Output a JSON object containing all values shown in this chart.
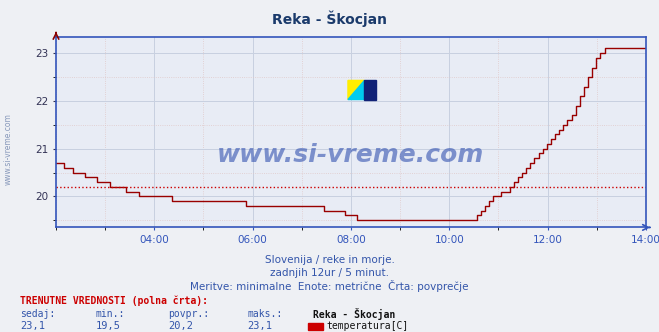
{
  "title": "Reka - Škocjan",
  "title_color": "#1a3a6b",
  "bg_color": "#eef0f4",
  "plot_bg_color": "#e8ecf5",
  "grid_color_major": "#c8d0e0",
  "grid_color_minor": "#e0c8c8",
  "line_color": "#990000",
  "avg_line_color": "#cc0000",
  "avg_line_value": 20.2,
  "xaxis_color": "#3355bb",
  "spine_color": "#3355bb",
  "xlim": [
    0,
    144
  ],
  "ylim": [
    19.35,
    23.35
  ],
  "yticks": [
    20,
    21,
    22,
    23
  ],
  "xtick_labels": [
    "04:00",
    "06:00",
    "08:00",
    "10:00",
    "12:00",
    "14:00"
  ],
  "xtick_positions": [
    24,
    48,
    72,
    96,
    120,
    144
  ],
  "watermark": "www.si-vreme.com",
  "watermark_color": "#2244aa",
  "sidebar_text": "www.si-vreme.com",
  "subtitle1": "Slovenija / reke in morje.",
  "subtitle2": "zadnjih 12ur / 5 minut.",
  "subtitle3": "Meritve: minimalne  Enote: metrične  Črta: povprečje",
  "footer_label1": "TRENUTNE VREDNOSTI (polna črta):",
  "footer_sedaj": "sedaj:",
  "footer_min": "min.:",
  "footer_povpr": "povpr.:",
  "footer_maks": "maks.:",
  "footer_name": "Reka - Škocjan",
  "footer_type": "temperatura[C]",
  "val_sedaj": "23,1",
  "val_min": "19,5",
  "val_povpr": "20,2",
  "val_maks": "23,1",
  "temperature_data": [
    20.7,
    20.7,
    20.6,
    20.6,
    20.5,
    20.5,
    20.5,
    20.4,
    20.4,
    20.4,
    20.3,
    20.3,
    20.3,
    20.2,
    20.2,
    20.2,
    20.2,
    20.1,
    20.1,
    20.1,
    20.0,
    20.0,
    20.0,
    20.0,
    20.0,
    20.0,
    20.0,
    20.0,
    19.9,
    19.9,
    19.9,
    19.9,
    19.9,
    19.9,
    19.9,
    19.9,
    19.9,
    19.9,
    19.9,
    19.9,
    19.9,
    19.9,
    19.9,
    19.9,
    19.9,
    19.9,
    19.8,
    19.8,
    19.8,
    19.8,
    19.8,
    19.8,
    19.8,
    19.8,
    19.8,
    19.8,
    19.8,
    19.8,
    19.8,
    19.8,
    19.8,
    19.8,
    19.8,
    19.8,
    19.8,
    19.7,
    19.7,
    19.7,
    19.7,
    19.7,
    19.6,
    19.6,
    19.6,
    19.5,
    19.5,
    19.5,
    19.5,
    19.5,
    19.5,
    19.5,
    19.5,
    19.5,
    19.5,
    19.5,
    19.5,
    19.5,
    19.5,
    19.5,
    19.5,
    19.5,
    19.5,
    19.5,
    19.5,
    19.5,
    19.5,
    19.5,
    19.5,
    19.5,
    19.5,
    19.5,
    19.5,
    19.5,
    19.6,
    19.7,
    19.8,
    19.9,
    20.0,
    20.0,
    20.1,
    20.1,
    20.2,
    20.3,
    20.4,
    20.5,
    20.6,
    20.7,
    20.8,
    20.9,
    21.0,
    21.1,
    21.2,
    21.3,
    21.4,
    21.5,
    21.6,
    21.7,
    21.9,
    22.1,
    22.3,
    22.5,
    22.7,
    22.9,
    23.0,
    23.1,
    23.1,
    23.1,
    23.1,
    23.1,
    23.1,
    23.1,
    23.1,
    23.1,
    23.1,
    23.1
  ]
}
